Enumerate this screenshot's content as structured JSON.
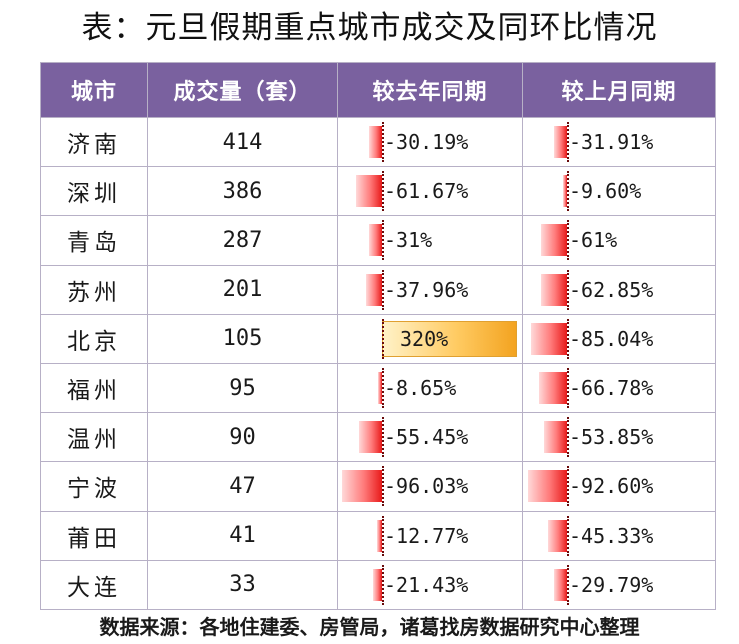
{
  "title": "表：元旦假期重点城市成交及同环比情况",
  "source": "数据来源：各地住建委、房管局，诸葛找房数据研究中心整理",
  "chart_data": {
    "type": "table",
    "columns": [
      "城市",
      "成交量（套）",
      "较去年同期",
      "较上月同期"
    ],
    "rows": [
      {
        "city": "济南",
        "volume": "414",
        "yoy_label": "-30.19%",
        "yoy": -30.19,
        "mom_label": "-31.91%",
        "mom": -31.91
      },
      {
        "city": "深圳",
        "volume": "386",
        "yoy_label": "-61.67%",
        "yoy": -61.67,
        "mom_label": "-9.60%",
        "mom": -9.6
      },
      {
        "city": "青岛",
        "volume": "287",
        "yoy_label": "-31%",
        "yoy": -31,
        "mom_label": "-61%",
        "mom": -61
      },
      {
        "city": "苏州",
        "volume": "201",
        "yoy_label": "-37.96%",
        "yoy": -37.96,
        "mom_label": "-62.85%",
        "mom": -62.85
      },
      {
        "city": "北京",
        "volume": "105",
        "yoy_label": "320%",
        "yoy": 320,
        "mom_label": "-85.04%",
        "mom": -85.04
      },
      {
        "city": "福州",
        "volume": "95",
        "yoy_label": "-8.65%",
        "yoy": -8.65,
        "mom_label": "-66.78%",
        "mom": -66.78
      },
      {
        "city": "温州",
        "volume": "90",
        "yoy_label": "-55.45%",
        "yoy": -55.45,
        "mom_label": "-53.85%",
        "mom": -53.85
      },
      {
        "city": "宁波",
        "volume": "47",
        "yoy_label": "-96.03%",
        "yoy": -96.03,
        "mom_label": "-92.60%",
        "mom": -92.6
      },
      {
        "city": "莆田",
        "volume": "41",
        "yoy_label": "-12.77%",
        "yoy": -12.77,
        "mom_label": "-45.33%",
        "mom": -45.33
      },
      {
        "city": "大连",
        "volume": "33",
        "yoy_label": "-21.43%",
        "yoy": -21.43,
        "mom_label": "-29.79%",
        "mom": -29.79
      }
    ],
    "bar_colors": {
      "negative": "#e81a1a",
      "positive": "#f3a320"
    }
  }
}
